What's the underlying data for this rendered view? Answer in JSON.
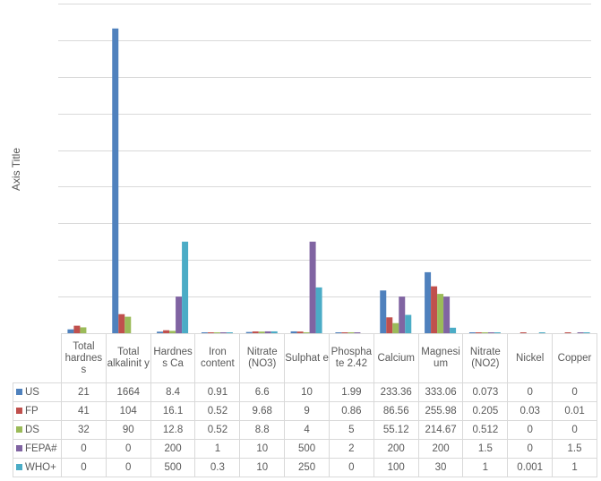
{
  "chart_data": {
    "type": "bar",
    "title": "",
    "xlabel": "",
    "ylabel": "Axis Title",
    "ylim": [
      0,
      1800
    ],
    "ytick_step": 200,
    "ytick_labels_visible": false,
    "grid": true,
    "legend": "data-table",
    "categories": [
      "Total hardness",
      "Total alkalinity",
      "Hardness Ca",
      "Iron content",
      "Nitrate (NO3)",
      "Sulphate",
      "Phosphate 2.42",
      "Calcium",
      "Magnesium",
      "Nitrate (NO2)",
      "Nickel",
      "Copper"
    ],
    "category_labels": [
      "Total hardnes s",
      "Total alkalinit y",
      "Hardnes s Ca",
      "Iron content",
      "Nitrate (NO3)",
      "Sulphat e",
      "Phospha te 2.42",
      "Calcium",
      "Magnesi um",
      "Nitrate (NO2)",
      "Nickel",
      "Copper"
    ],
    "series": [
      {
        "name": "US",
        "color": "#4F81BD",
        "values": [
          21,
          1664,
          8.4,
          0.91,
          6.6,
          10,
          1.99,
          233.36,
          333.06,
          0.073,
          0,
          0
        ],
        "labels": [
          "21",
          "1664",
          "8.4",
          "0.91",
          "6.6",
          "10",
          "1.99",
          "233.36",
          "333.06",
          "0.073",
          "0",
          "0"
        ]
      },
      {
        "name": "FP",
        "color": "#C0504D",
        "values": [
          41,
          104,
          16.1,
          0.52,
          9.68,
          9,
          0.86,
          86.56,
          255.98,
          0.205,
          0.03,
          0.01
        ],
        "labels": [
          "41",
          "104",
          "16.1",
          "0.52",
          "9.68",
          "9",
          "0.86",
          "86.56",
          "255.98",
          "0.205",
          "0.03",
          "0.01"
        ]
      },
      {
        "name": "DS",
        "color": "#9BBB59",
        "values": [
          32,
          90,
          12.8,
          0.52,
          8.8,
          4,
          5,
          55.12,
          214.67,
          0.512,
          0,
          0
        ],
        "labels": [
          "32",
          "90",
          "12.8",
          "0.52",
          "8.8",
          "4",
          "5",
          "55.12",
          "214.67",
          "0.512",
          "0",
          "0"
        ]
      },
      {
        "name": "FEPA#",
        "color": "#8064A2",
        "values": [
          0,
          0,
          200,
          1,
          10,
          500,
          2,
          200,
          200,
          1.5,
          0,
          1.5
        ],
        "labels": [
          "0",
          "0",
          "200",
          "1",
          "10",
          "500",
          "2",
          "200",
          "200",
          "1.5",
          "0",
          "1.5"
        ]
      },
      {
        "name": "WHO+",
        "color": "#4BACC6",
        "values": [
          0,
          0,
          500,
          0.3,
          10,
          250,
          0,
          100,
          30,
          1,
          0.001,
          1
        ],
        "labels": [
          "0",
          "0",
          "500",
          "0.3",
          "10",
          "250",
          "0",
          "100",
          "30",
          "1",
          "0.001",
          "1"
        ]
      }
    ]
  }
}
